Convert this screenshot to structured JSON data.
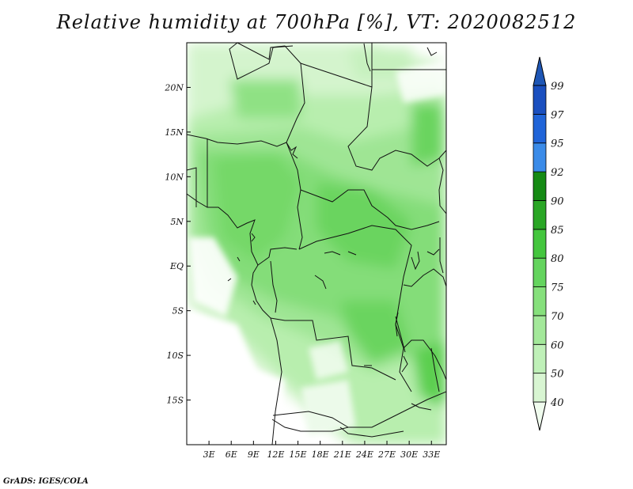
{
  "title": "Relative humidity at 700hPa [%], VT: 2020082512",
  "credit": "GrADS: IGES/COLA",
  "map": {
    "lon_range": [
      0,
      35
    ],
    "lat_range": [
      -20,
      25
    ],
    "lon_ticks": [
      "3E",
      "6E",
      "9E",
      "12E",
      "15E",
      "18E",
      "21E",
      "24E",
      "27E",
      "30E",
      "33E"
    ],
    "lat_ticks": [
      "20N",
      "15N",
      "10N",
      "5N",
      "EQ",
      "5S",
      "10S",
      "15S"
    ]
  },
  "colorbar": {
    "levels": [
      "40",
      "50",
      "60",
      "70",
      "75",
      "80",
      "85",
      "90",
      "92",
      "95",
      "97",
      "99"
    ],
    "colors": [
      "#f0fcee",
      "#d8f5d2",
      "#bff0b8",
      "#a3e89a",
      "#86e07c",
      "#64d45e",
      "#44c63e",
      "#2aa625",
      "#158a14",
      "#3b8be8",
      "#2064d8",
      "#1a4fbf",
      "#1e56b5"
    ]
  },
  "chart_data": {
    "type": "heatmap",
    "title": "Relative humidity at 700hPa [%], VT: 2020082512",
    "xlabel": "",
    "ylabel": "",
    "x_ticks": [
      "3E",
      "6E",
      "9E",
      "12E",
      "15E",
      "18E",
      "21E",
      "24E",
      "27E",
      "30E",
      "33E"
    ],
    "y_ticks": [
      "20N",
      "15N",
      "10N",
      "5N",
      "EQ",
      "5S",
      "10S",
      "15S"
    ],
    "color_levels": [
      40,
      50,
      60,
      70,
      75,
      80,
      85,
      90,
      92,
      95,
      97,
      99
    ]
  }
}
